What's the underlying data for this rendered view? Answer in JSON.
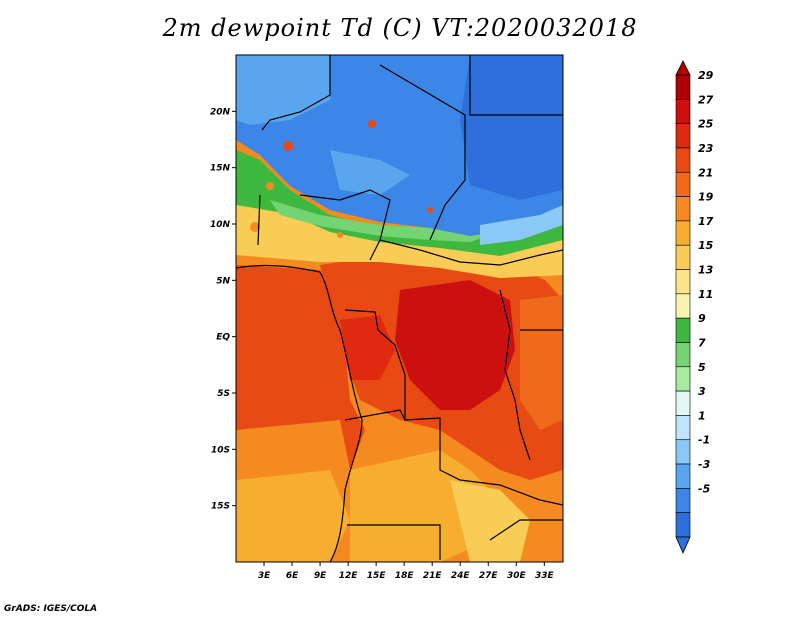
{
  "title": "2m dewpoint Td (C) VT:2020032018",
  "footer": "GrADS: IGES/COLA",
  "map": {
    "lat_labels": [
      "20N",
      "15N",
      "10N",
      "5N",
      "EQ",
      "5S",
      "10S",
      "15S"
    ],
    "lat_values": [
      20,
      15,
      10,
      5,
      0,
      -5,
      -10,
      -15
    ],
    "lon_labels": [
      "3E",
      "6E",
      "9E",
      "12E",
      "15E",
      "18E",
      "21E",
      "24E",
      "27E",
      "30E",
      "33E"
    ],
    "lon_values": [
      3,
      6,
      9,
      12,
      15,
      18,
      21,
      24,
      27,
      30,
      33
    ],
    "lon_range": [
      0,
      35
    ],
    "lat_range": [
      -20,
      25
    ]
  },
  "colorbar": {
    "labels": [
      "29",
      "27",
      "25",
      "23",
      "21",
      "19",
      "17",
      "15",
      "13",
      "11",
      "9",
      "7",
      "5",
      "3",
      "1",
      "-1",
      "-3",
      "-5"
    ],
    "colors": [
      "#b00000",
      "#cc1010",
      "#e02a10",
      "#e84a14",
      "#ef6a1a",
      "#f48a20",
      "#f7ad30",
      "#f9cc55",
      "#fbe38a",
      "#f6f4b0",
      "#3fb83f",
      "#74d474",
      "#a8eaa0",
      "#e2f7f4",
      "#bfe4fb",
      "#8ac9f5",
      "#5aa6ee",
      "#3b86e6",
      "#2f6fdc"
    ]
  }
}
